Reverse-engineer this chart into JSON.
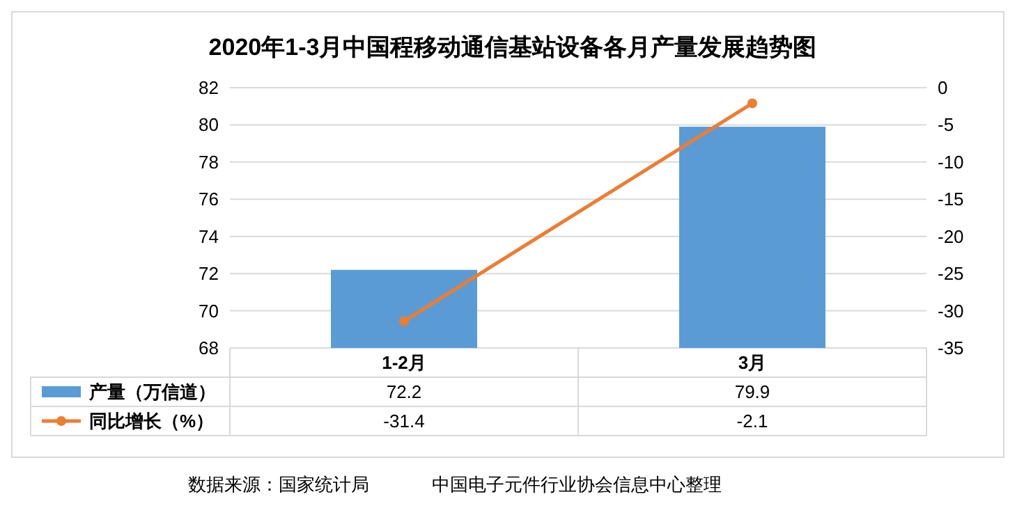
{
  "chart_data": {
    "type": "bar",
    "title": "2020年1-3月中国程移动通信基站设备各月产量发展趋势图",
    "categories": [
      "1-2月",
      "3月"
    ],
    "series": [
      {
        "name": "产量（万信道）",
        "color": "#5b9bd5",
        "values": [
          72.2,
          79.9
        ]
      },
      {
        "name": "同比增长（%）",
        "type": "line",
        "axis": "y2",
        "color": "#ed7d31",
        "marker": "circle",
        "values": [
          -31.4,
          -2.1
        ]
      }
    ],
    "ylim": [
      68,
      82
    ],
    "yticks": [
      68,
      70,
      72,
      74,
      76,
      78,
      80,
      82
    ],
    "y2lim": [
      -35,
      0
    ],
    "y2ticks": [
      -35,
      -30,
      -25,
      -20,
      -15,
      -10,
      -5,
      0
    ],
    "grid": "y",
    "legend": "bottom",
    "data_labels": true,
    "annotations": [
      "数据来源：国家统计局",
      "中国电子元件行业协会信息中心整理"
    ]
  }
}
